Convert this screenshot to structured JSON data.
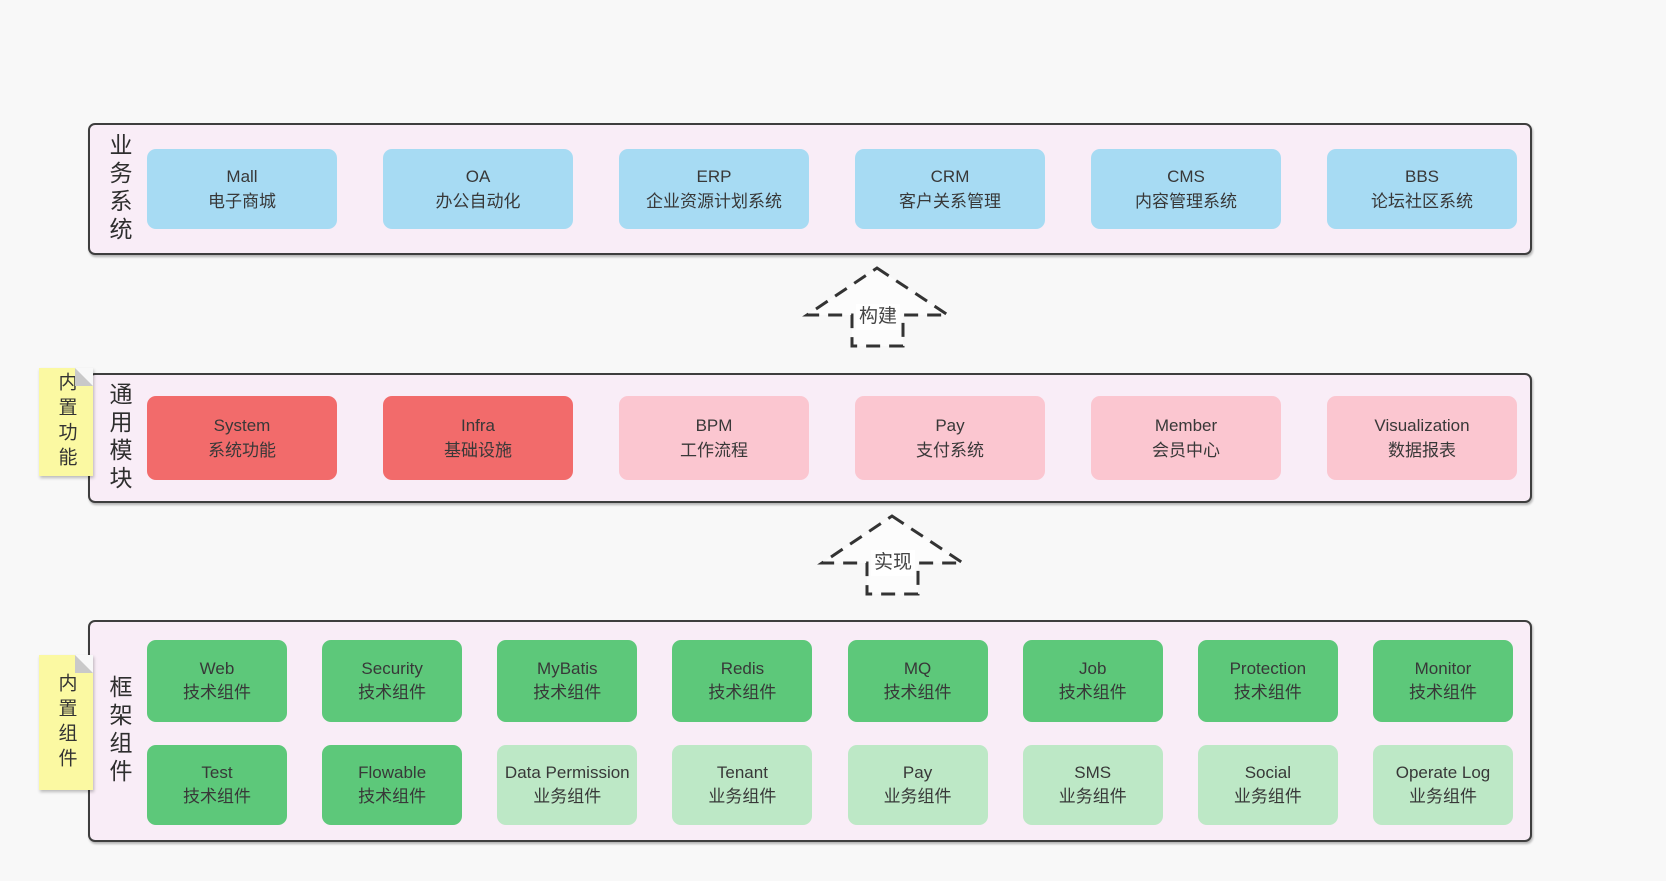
{
  "palette": {
    "page_bg": "#f8f8f8",
    "panel_bg": "#f9edf7",
    "panel_border": "#3e3e3e",
    "blue": "#a7dbf3",
    "red": "#f26b6b",
    "pink": "#fbc6d0",
    "green": "#5dc87a",
    "green_light": "#bde8c6",
    "sticky_yellow": "#fbf9a2",
    "sticky_fold": "#c9c9c9",
    "text": "#333333"
  },
  "arrows": [
    {
      "label": "构建"
    },
    {
      "label": "实现"
    }
  ],
  "layers": [
    {
      "label": "业务系统",
      "rows": [
        [
          {
            "title": "Mall",
            "subtitle": "电子商城",
            "color": "blue"
          },
          {
            "title": "OA",
            "subtitle": "办公自动化",
            "color": "blue"
          },
          {
            "title": "ERP",
            "subtitle": "企业资源计划系统",
            "color": "blue"
          },
          {
            "title": "CRM",
            "subtitle": "客户关系管理",
            "color": "blue"
          },
          {
            "title": "CMS",
            "subtitle": "内容管理系统",
            "color": "blue"
          },
          {
            "title": "BBS",
            "subtitle": "论坛社区系统",
            "color": "blue"
          }
        ]
      ]
    },
    {
      "label": "通用模块",
      "sticky_note": "内置功能",
      "rows": [
        [
          {
            "title": "System",
            "subtitle": "系统功能",
            "color": "red"
          },
          {
            "title": "Infra",
            "subtitle": "基础设施",
            "color": "red"
          },
          {
            "title": "BPM",
            "subtitle": "工作流程",
            "color": "pink"
          },
          {
            "title": "Pay",
            "subtitle": "支付系统",
            "color": "pink"
          },
          {
            "title": "Member",
            "subtitle": "会员中心",
            "color": "pink"
          },
          {
            "title": "Visualization",
            "subtitle": "数据报表",
            "color": "pink"
          }
        ]
      ]
    },
    {
      "label": "框架组件",
      "sticky_note": "内置组件",
      "rows": [
        [
          {
            "title": "Web",
            "subtitle": "技术组件",
            "color": "green"
          },
          {
            "title": "Security",
            "subtitle": "技术组件",
            "color": "green"
          },
          {
            "title": "MyBatis",
            "subtitle": "技术组件",
            "color": "green"
          },
          {
            "title": "Redis",
            "subtitle": "技术组件",
            "color": "green"
          },
          {
            "title": "MQ",
            "subtitle": "技术组件",
            "color": "green"
          },
          {
            "title": "Job",
            "subtitle": "技术组件",
            "color": "green"
          },
          {
            "title": "Protection",
            "subtitle": "技术组件",
            "color": "green"
          },
          {
            "title": "Monitor",
            "subtitle": "技术组件",
            "color": "green"
          }
        ],
        [
          {
            "title": "Test",
            "subtitle": "技术组件",
            "color": "green"
          },
          {
            "title": "Flowable",
            "subtitle": "技术组件",
            "color": "green"
          },
          {
            "title": "Data Permission",
            "subtitle": "业务组件",
            "color": "green_light"
          },
          {
            "title": "Tenant",
            "subtitle": "业务组件",
            "color": "green_light"
          },
          {
            "title": "Pay",
            "subtitle": "业务组件",
            "color": "green_light"
          },
          {
            "title": "SMS",
            "subtitle": "业务组件",
            "color": "green_light"
          },
          {
            "title": "Social",
            "subtitle": "业务组件",
            "color": "green_light"
          },
          {
            "title": "Operate Log",
            "subtitle": "业务组件",
            "color": "green_light"
          }
        ]
      ]
    }
  ]
}
